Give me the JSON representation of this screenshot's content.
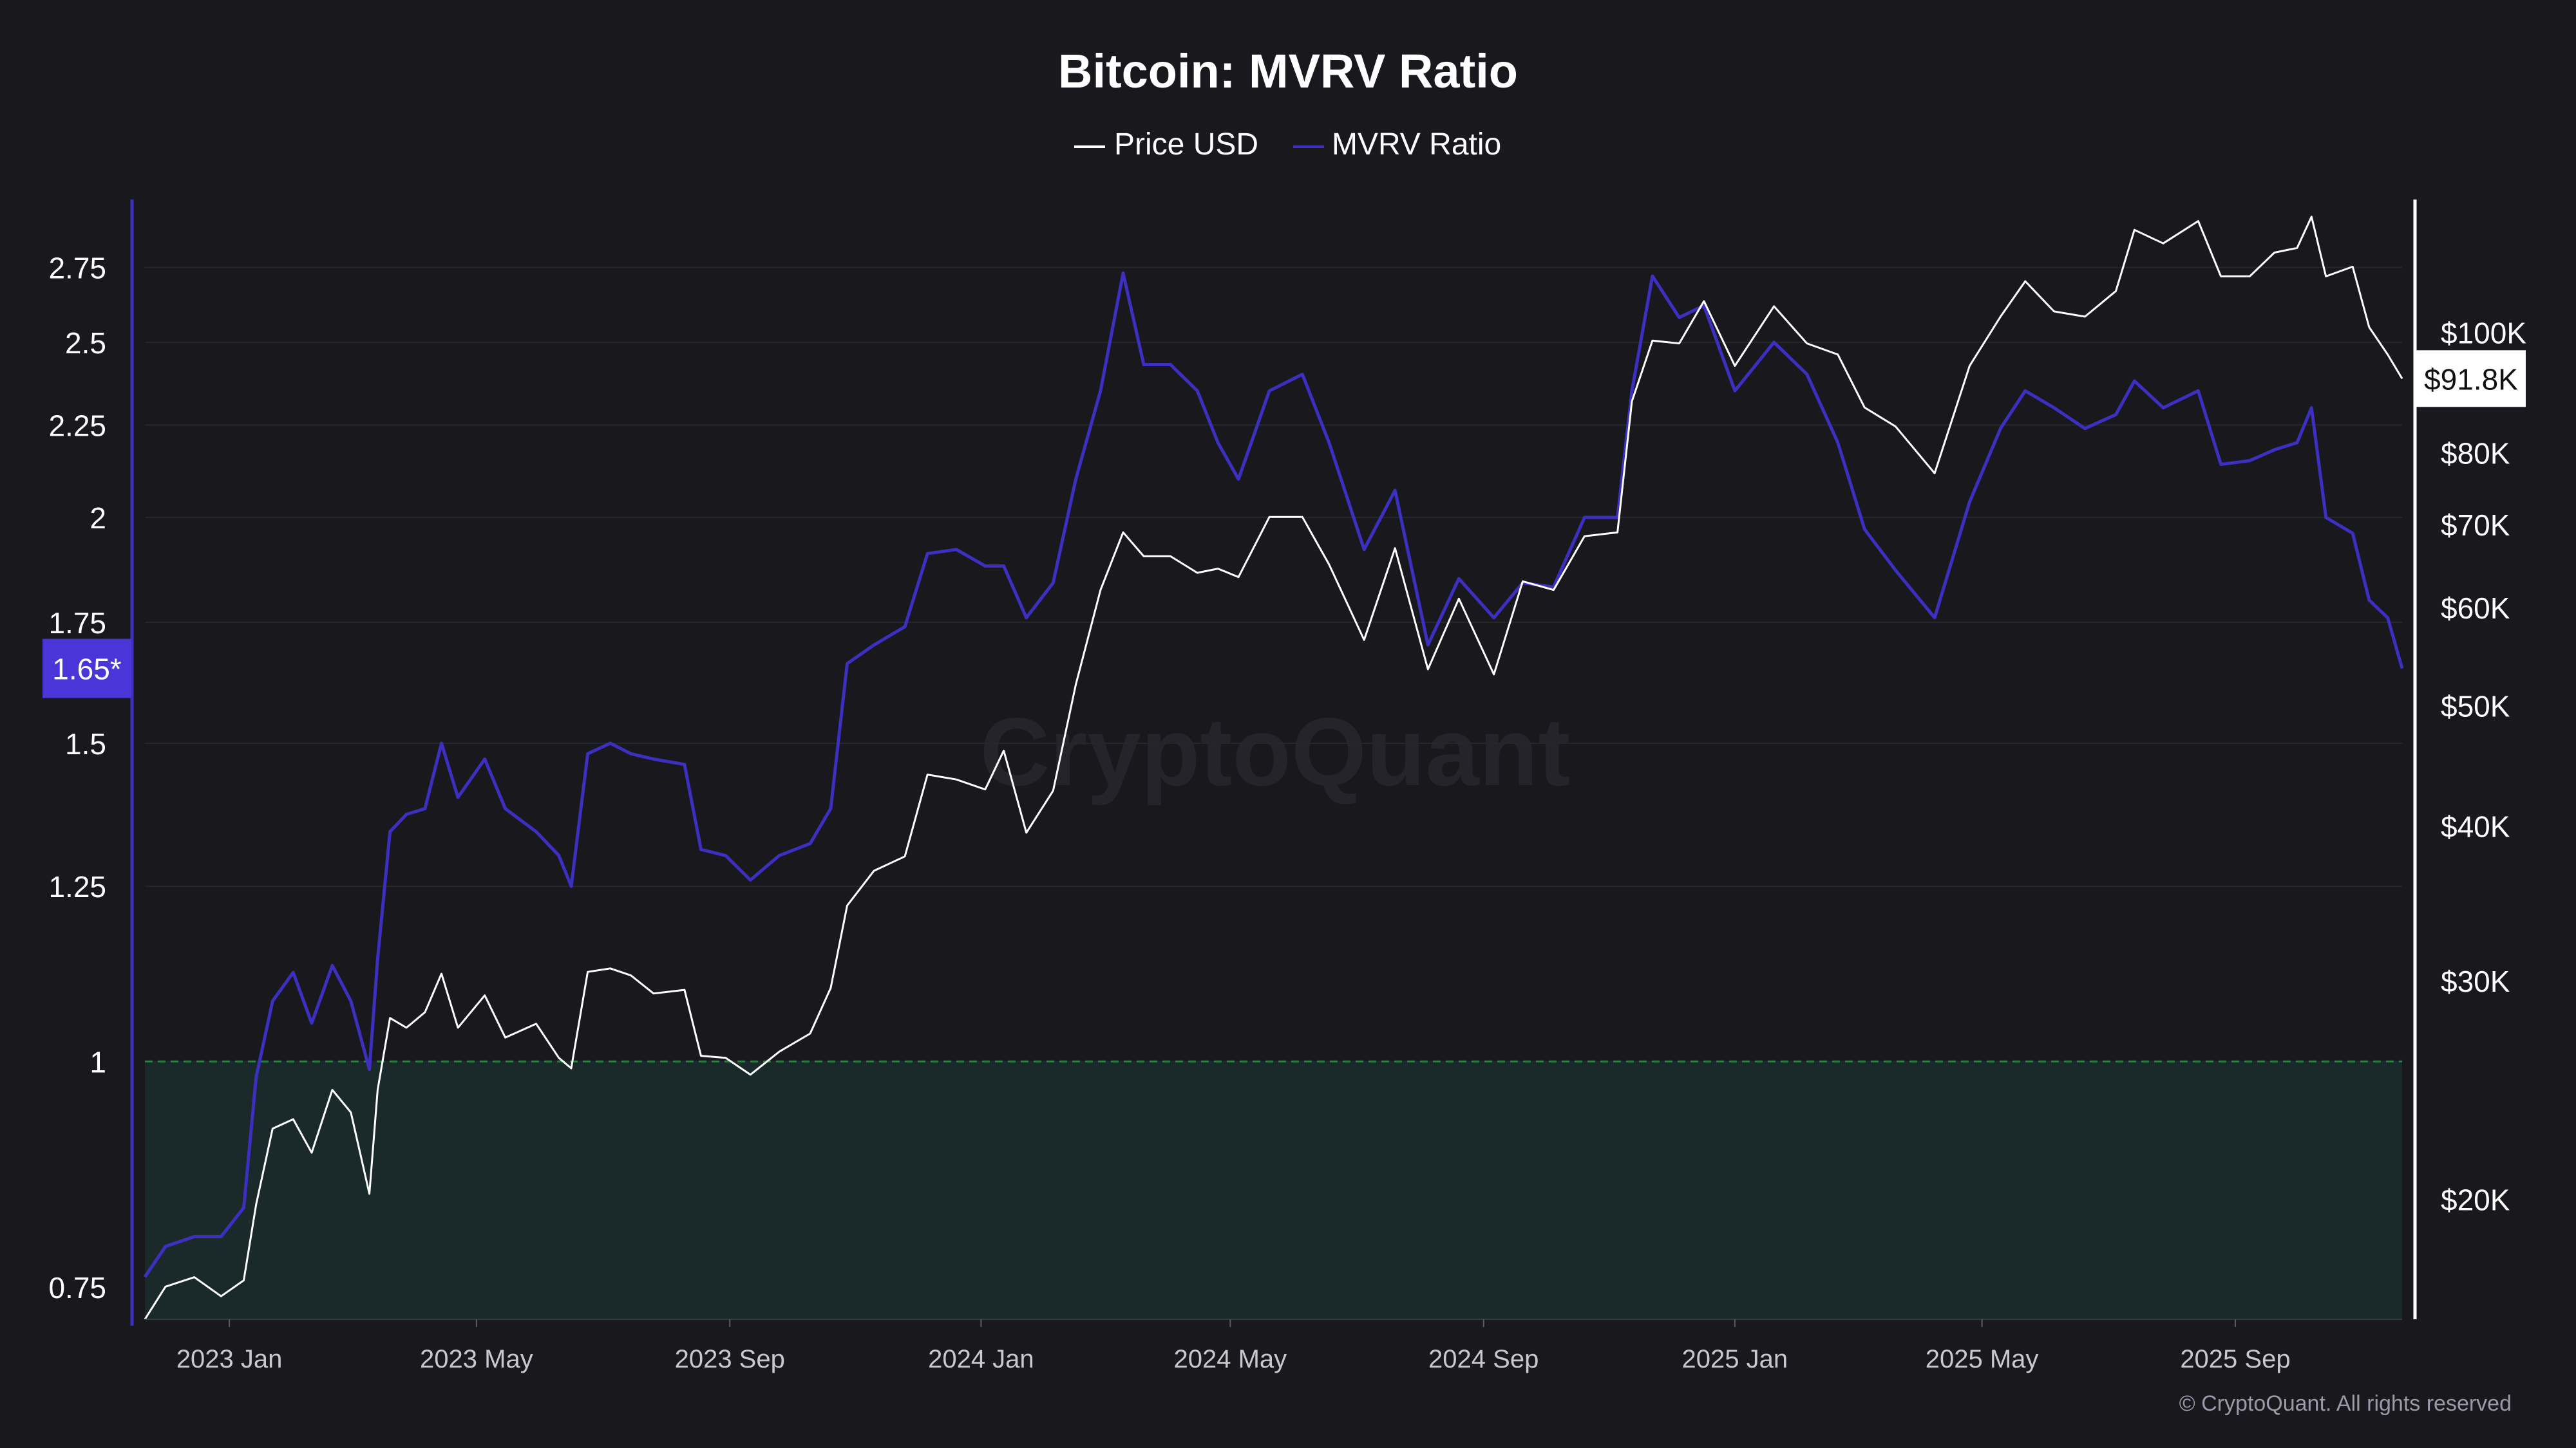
{
  "chart_data": {
    "type": "line",
    "title": "Bitcoin: MVRV Ratio",
    "legend": {
      "placement": "top-center",
      "items": [
        {
          "name": "Price USD",
          "color": "#ffffff"
        },
        {
          "name": "MVRV Ratio",
          "color": "#3d2fc0"
        }
      ]
    },
    "x_axis": {
      "ticks": [
        "2023 Jan",
        "2023 May",
        "2023 Sep",
        "2024 Jan",
        "2024 May",
        "2024 Sep",
        "2025 Jan",
        "2025 May",
        "2025 Sep"
      ],
      "range": [
        "2022-11-21",
        "2025-11-21"
      ]
    },
    "y_left": {
      "label": "",
      "scale": "log",
      "range": [
        0.72,
        2.95
      ],
      "ticks": [
        "0.75",
        "1",
        "1.25",
        "1.5",
        "1.75",
        "2",
        "2.25",
        "2.5",
        "2.75"
      ],
      "current_badge": "1.65*"
    },
    "y_right": {
      "label": "",
      "scale": "log",
      "range": [
        16000,
        125000
      ],
      "ticks": [
        "$20K",
        "$30K",
        "$40K",
        "$50K",
        "$60K",
        "$70K",
        "$80K",
        "$100K"
      ],
      "current_badge": "$91.8K"
    },
    "threshold": {
      "value": 1,
      "style": "dashed",
      "color": "#2e7d46",
      "fill_below": "#1a2a2a"
    },
    "grid": "horizontal",
    "series": [
      {
        "name": "MVRV Ratio",
        "axis": "left",
        "color": "#3d2fc0",
        "points": [
          [
            "2022-11-21",
            0.76
          ],
          [
            "2022-12-01",
            0.79
          ],
          [
            "2022-12-15",
            0.8
          ],
          [
            "2022-12-28",
            0.8
          ],
          [
            "2023-01-08",
            0.83
          ],
          [
            "2023-01-14",
            0.98
          ],
          [
            "2023-01-22",
            1.08
          ],
          [
            "2023-02-01",
            1.12
          ],
          [
            "2023-02-10",
            1.05
          ],
          [
            "2023-02-20",
            1.13
          ],
          [
            "2023-03-01",
            1.08
          ],
          [
            "2023-03-10",
            0.99
          ],
          [
            "2023-03-14",
            1.14
          ],
          [
            "2023-03-20",
            1.34
          ],
          [
            "2023-03-28",
            1.37
          ],
          [
            "2023-04-06",
            1.38
          ],
          [
            "2023-04-14",
            1.5
          ],
          [
            "2023-04-22",
            1.4
          ],
          [
            "2023-05-05",
            1.47
          ],
          [
            "2023-05-15",
            1.38
          ],
          [
            "2023-05-30",
            1.34
          ],
          [
            "2023-06-10",
            1.3
          ],
          [
            "2023-06-16",
            1.25
          ],
          [
            "2023-06-24",
            1.48
          ],
          [
            "2023-07-05",
            1.5
          ],
          [
            "2023-07-15",
            1.48
          ],
          [
            "2023-07-26",
            1.47
          ],
          [
            "2023-08-10",
            1.46
          ],
          [
            "2023-08-18",
            1.31
          ],
          [
            "2023-08-30",
            1.3
          ],
          [
            "2023-09-11",
            1.26
          ],
          [
            "2023-09-25",
            1.3
          ],
          [
            "2023-10-10",
            1.32
          ],
          [
            "2023-10-20",
            1.38
          ],
          [
            "2023-10-28",
            1.66
          ],
          [
            "2023-11-10",
            1.7
          ],
          [
            "2023-11-25",
            1.74
          ],
          [
            "2023-12-06",
            1.91
          ],
          [
            "2023-12-20",
            1.92
          ],
          [
            "2024-01-03",
            1.88
          ],
          [
            "2024-01-12",
            1.88
          ],
          [
            "2024-01-23",
            1.76
          ],
          [
            "2024-02-05",
            1.84
          ],
          [
            "2024-02-16",
            2.1
          ],
          [
            "2024-02-28",
            2.35
          ],
          [
            "2024-03-10",
            2.73
          ],
          [
            "2024-03-20",
            2.43
          ],
          [
            "2024-04-02",
            2.43
          ],
          [
            "2024-04-15",
            2.35
          ],
          [
            "2024-04-25",
            2.2
          ],
          [
            "2024-05-05",
            2.1
          ],
          [
            "2024-05-20",
            2.35
          ],
          [
            "2024-06-05",
            2.4
          ],
          [
            "2024-06-18",
            2.2
          ],
          [
            "2024-07-05",
            1.92
          ],
          [
            "2024-07-20",
            2.07
          ],
          [
            "2024-08-05",
            1.7
          ],
          [
            "2024-08-20",
            1.85
          ],
          [
            "2024-09-06",
            1.76
          ],
          [
            "2024-09-20",
            1.84
          ],
          [
            "2024-10-05",
            1.83
          ],
          [
            "2024-10-20",
            2.0
          ],
          [
            "2024-11-05",
            2.0
          ],
          [
            "2024-11-12",
            2.35
          ],
          [
            "2024-11-22",
            2.72
          ],
          [
            "2024-12-05",
            2.58
          ],
          [
            "2024-12-17",
            2.62
          ],
          [
            "2025-01-01",
            2.35
          ],
          [
            "2025-01-20",
            2.5
          ],
          [
            "2025-02-05",
            2.4
          ],
          [
            "2025-02-20",
            2.2
          ],
          [
            "2025-03-05",
            1.97
          ],
          [
            "2025-03-20",
            1.87
          ],
          [
            "2025-04-08",
            1.76
          ],
          [
            "2025-04-25",
            2.04
          ],
          [
            "2025-05-10",
            2.24
          ],
          [
            "2025-05-22",
            2.35
          ],
          [
            "2025-06-05",
            2.3
          ],
          [
            "2025-06-20",
            2.24
          ],
          [
            "2025-07-05",
            2.28
          ],
          [
            "2025-07-14",
            2.38
          ],
          [
            "2025-07-28",
            2.3
          ],
          [
            "2025-08-14",
            2.35
          ],
          [
            "2025-08-25",
            2.14
          ],
          [
            "2025-09-08",
            2.15
          ],
          [
            "2025-09-20",
            2.18
          ],
          [
            "2025-10-01",
            2.2
          ],
          [
            "2025-10-08",
            2.3
          ],
          [
            "2025-10-15",
            2.0
          ],
          [
            "2025-10-28",
            1.96
          ],
          [
            "2025-11-05",
            1.8
          ],
          [
            "2025-11-14",
            1.76
          ],
          [
            "2025-11-21",
            1.65
          ]
        ]
      },
      {
        "name": "Price USD",
        "axis": "right",
        "color": "#ffffff",
        "points": [
          [
            "2022-11-21",
            16000
          ],
          [
            "2022-12-01",
            17000
          ],
          [
            "2022-12-15",
            17300
          ],
          [
            "2022-12-28",
            16700
          ],
          [
            "2023-01-08",
            17200
          ],
          [
            "2023-01-14",
            19800
          ],
          [
            "2023-01-22",
            22800
          ],
          [
            "2023-02-01",
            23200
          ],
          [
            "2023-02-10",
            21800
          ],
          [
            "2023-02-20",
            24500
          ],
          [
            "2023-03-01",
            23500
          ],
          [
            "2023-03-10",
            20200
          ],
          [
            "2023-03-14",
            24500
          ],
          [
            "2023-03-20",
            28000
          ],
          [
            "2023-03-28",
            27500
          ],
          [
            "2023-04-06",
            28300
          ],
          [
            "2023-04-14",
            30400
          ],
          [
            "2023-04-22",
            27500
          ],
          [
            "2023-05-05",
            29200
          ],
          [
            "2023-05-15",
            27000
          ],
          [
            "2023-05-30",
            27700
          ],
          [
            "2023-06-10",
            26000
          ],
          [
            "2023-06-16",
            25500
          ],
          [
            "2023-06-24",
            30500
          ],
          [
            "2023-07-05",
            30700
          ],
          [
            "2023-07-15",
            30300
          ],
          [
            "2023-07-26",
            29300
          ],
          [
            "2023-08-10",
            29500
          ],
          [
            "2023-08-18",
            26100
          ],
          [
            "2023-08-30",
            26000
          ],
          [
            "2023-09-11",
            25200
          ],
          [
            "2023-09-25",
            26300
          ],
          [
            "2023-10-10",
            27200
          ],
          [
            "2023-10-20",
            29600
          ],
          [
            "2023-10-28",
            34500
          ],
          [
            "2023-11-10",
            36800
          ],
          [
            "2023-11-25",
            37800
          ],
          [
            "2023-12-06",
            44000
          ],
          [
            "2023-12-20",
            43600
          ],
          [
            "2024-01-03",
            42800
          ],
          [
            "2024-01-12",
            46000
          ],
          [
            "2024-01-23",
            39500
          ],
          [
            "2024-02-05",
            42700
          ],
          [
            "2024-02-16",
            52000
          ],
          [
            "2024-02-28",
            62000
          ],
          [
            "2024-03-10",
            69000
          ],
          [
            "2024-03-20",
            66000
          ],
          [
            "2024-04-02",
            66000
          ],
          [
            "2024-04-15",
            64000
          ],
          [
            "2024-04-25",
            64500
          ],
          [
            "2024-05-05",
            63500
          ],
          [
            "2024-05-20",
            71000
          ],
          [
            "2024-06-05",
            71000
          ],
          [
            "2024-06-18",
            65000
          ],
          [
            "2024-07-05",
            56500
          ],
          [
            "2024-07-20",
            67000
          ],
          [
            "2024-08-05",
            53500
          ],
          [
            "2024-08-20",
            61000
          ],
          [
            "2024-09-06",
            53000
          ],
          [
            "2024-09-20",
            63000
          ],
          [
            "2024-10-05",
            62000
          ],
          [
            "2024-10-20",
            68500
          ],
          [
            "2024-11-05",
            69000
          ],
          [
            "2024-11-12",
            88000
          ],
          [
            "2024-11-22",
            98500
          ],
          [
            "2024-12-05",
            98000
          ],
          [
            "2024-12-17",
            106000
          ],
          [
            "2025-01-01",
            94000
          ],
          [
            "2025-01-20",
            105000
          ],
          [
            "2025-02-05",
            98000
          ],
          [
            "2025-02-20",
            96000
          ],
          [
            "2025-03-05",
            87000
          ],
          [
            "2025-03-20",
            84000
          ],
          [
            "2025-04-08",
            77000
          ],
          [
            "2025-04-25",
            94000
          ],
          [
            "2025-05-10",
            103000
          ],
          [
            "2025-05-22",
            110000
          ],
          [
            "2025-06-05",
            104000
          ],
          [
            "2025-06-20",
            103000
          ],
          [
            "2025-07-05",
            108000
          ],
          [
            "2025-07-14",
            121000
          ],
          [
            "2025-07-28",
            118000
          ],
          [
            "2025-08-14",
            123000
          ],
          [
            "2025-08-25",
            111000
          ],
          [
            "2025-09-08",
            111000
          ],
          [
            "2025-09-20",
            116000
          ],
          [
            "2025-10-01",
            117000
          ],
          [
            "2025-10-08",
            124000
          ],
          [
            "2025-10-15",
            111000
          ],
          [
            "2025-10-28",
            113000
          ],
          [
            "2025-11-05",
            101000
          ],
          [
            "2025-11-14",
            96000
          ],
          [
            "2025-11-21",
            91800
          ]
        ]
      }
    ],
    "watermark": "CryptoQuant",
    "footer": "© CryptoQuant. All rights reserved"
  }
}
